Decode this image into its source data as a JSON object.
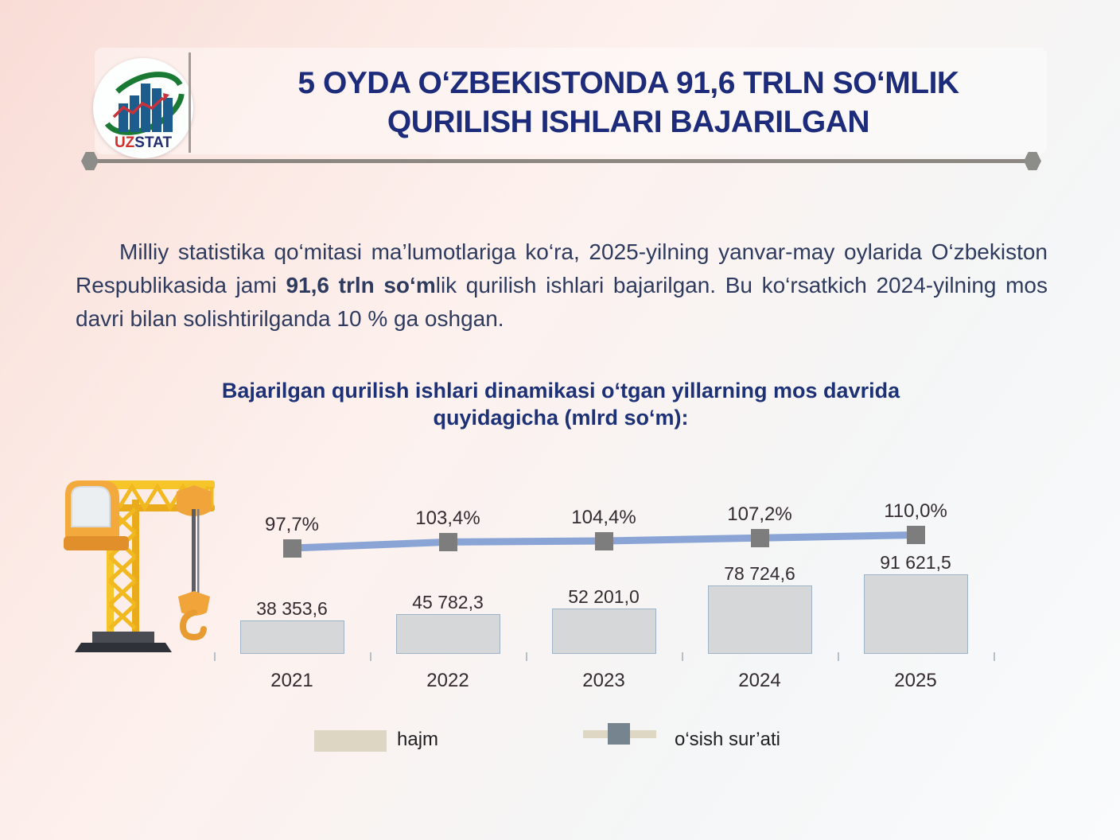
{
  "header": {
    "logo": {
      "name": "UZSTAT",
      "text_uz": "UZ",
      "text_stat": "STAT"
    },
    "title_line1": "5 OYDA O‘ZBEKISTONDA 91,6 TRLN SO‘MLIK",
    "title_line2": "QURILISH ISHLARI BAJARILGAN"
  },
  "intro": {
    "pre": "Milliy statistika qo‘mitasi ma’lumotlariga ko‘ra, 2025-yilning yanvar-may oylarida O‘zbekiston Respublikasida jami ",
    "bold": "91,6 trln so‘m",
    "post": "lik qurilish ishlari bajarilgan. Bu ko‘rsatkich 2024-yilning mos davri bilan solishtirilganda 10 % ga oshgan."
  },
  "chart_title": {
    "line1": "Bajarilgan qurilish ishlari dinamikasi o‘tgan yillarning mos davrida",
    "line2": "quyidagicha (mlrd so‘m):"
  },
  "chart_data": {
    "type": "bar+line",
    "title": "Bajarilgan qurilish ishlari dinamikasi o‘tgan yillarning mos davrida quyidagicha (mlrd so‘m)",
    "unit": "mlrd so‘m",
    "categories": [
      "2021",
      "2022",
      "2023",
      "2024",
      "2025"
    ],
    "series": [
      {
        "name": "hajm",
        "type": "bar",
        "values": [
          38353.6,
          45782.3,
          52201.0,
          78724.6,
          91621.5
        ],
        "labels": [
          "38 353,6",
          "45 782,3",
          "52 201,0",
          "78 724,6",
          "91 621,5"
        ]
      },
      {
        "name": "o‘sish sur’ati",
        "type": "line",
        "values": [
          97.7,
          103.4,
          104.4,
          107.2,
          110.0
        ],
        "labels": [
          "97,7%",
          "103,4%",
          "104,4%",
          "107,2%",
          "110,0%"
        ]
      }
    ],
    "ylim_bar": [
      0,
      91621.5
    ],
    "legend_position": "bottom",
    "legend": [
      {
        "label": "hajm",
        "swatch": "bar"
      },
      {
        "label": "o‘sish sur’ati",
        "swatch": "line-marker"
      }
    ],
    "colors": {
      "bar_fill": "#d6d7d9",
      "bar_border": "#9fb3c8",
      "line": "#8aa5d5",
      "marker": "#7d7d7d",
      "legend_swatch": "#ddd6c3",
      "legend_marker": "#76848f",
      "label_text": "#342b31"
    }
  },
  "colors": {
    "title_navy": "#1c2c7a",
    "chart_title_navy": "#1d3176",
    "body_text": "#2e3b5e",
    "background_pink": "#f9dcd6",
    "background_white": "#fafbfc",
    "divider_gray": "#8d8782",
    "logo_uz_red": "#d2302c",
    "logo_stat_blue": "#232e72",
    "logo_bar_blue": "#1c5d8d",
    "logo_swoosh_green": "#1a7a33"
  }
}
